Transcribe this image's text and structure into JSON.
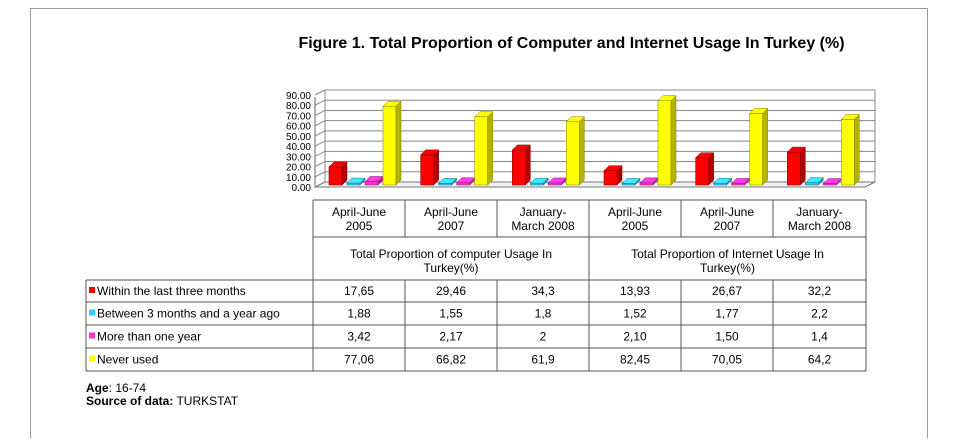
{
  "title": "Figure 1. Total Proportion of Computer and Internet Usage In Turkey (%)",
  "chart_data": {
    "type": "bar",
    "subtype": "3d-clustered-column-with-data-table",
    "categories": [
      [
        "April-June",
        "2005"
      ],
      [
        "April-June",
        "2007"
      ],
      [
        "January-",
        "March 2008"
      ],
      [
        "April-June",
        "2005"
      ],
      [
        "April-June",
        "2007"
      ],
      [
        "January-",
        "March 2008"
      ]
    ],
    "groups": [
      {
        "label": [
          "Total Proportion of computer  Usage In",
          "Turkey(%)"
        ],
        "span": [
          0,
          2
        ]
      },
      {
        "label": [
          "Total Proportion of Internet  Usage In",
          "Turkey(%)"
        ],
        "span": [
          3,
          5
        ]
      }
    ],
    "yticks": [
      "0.00",
      "10.00",
      "20.00",
      "30.00",
      "40.00",
      "50.00",
      "60.00",
      "70.00",
      "80.00",
      "90.00"
    ],
    "ylim": [
      0,
      90
    ],
    "series": [
      {
        "name": "Within the last three months",
        "color": "#ff0000",
        "values": [
          17.65,
          29.46,
          34.3,
          13.93,
          26.67,
          32.2
        ],
        "labels": [
          "17,65",
          "29,46",
          "34,3",
          "13,93",
          "26,67",
          "32,2"
        ]
      },
      {
        "name": "Between 3 months and a year ago",
        "color": "#33ccff",
        "values": [
          1.88,
          1.55,
          1.8,
          1.52,
          1.77,
          2.2
        ],
        "labels": [
          "1,88",
          "1,55",
          "1,8",
          "1,52",
          "1,77",
          "2,2"
        ]
      },
      {
        "name": "More than one year",
        "color": "#ff33cc",
        "values": [
          3.42,
          2.17,
          2,
          2.1,
          1.5,
          1.4
        ],
        "labels": [
          "3,42",
          "2,17",
          "2",
          "2,10",
          "1,50",
          "1,4"
        ]
      },
      {
        "name": "Never used",
        "color": "#ffff00",
        "values": [
          77.06,
          66.82,
          61.9,
          82.45,
          70.05,
          64.2
        ],
        "labels": [
          "77,06",
          "66,82",
          "61,9",
          "82,45",
          "70,05",
          "64,2"
        ]
      }
    ],
    "grid": true,
    "legend": "data-table-left"
  },
  "footer": {
    "age_label": "Age",
    "age_value": ": 16-74",
    "source_label": "Source of  data:",
    "source_value": " TURKSTAT"
  }
}
